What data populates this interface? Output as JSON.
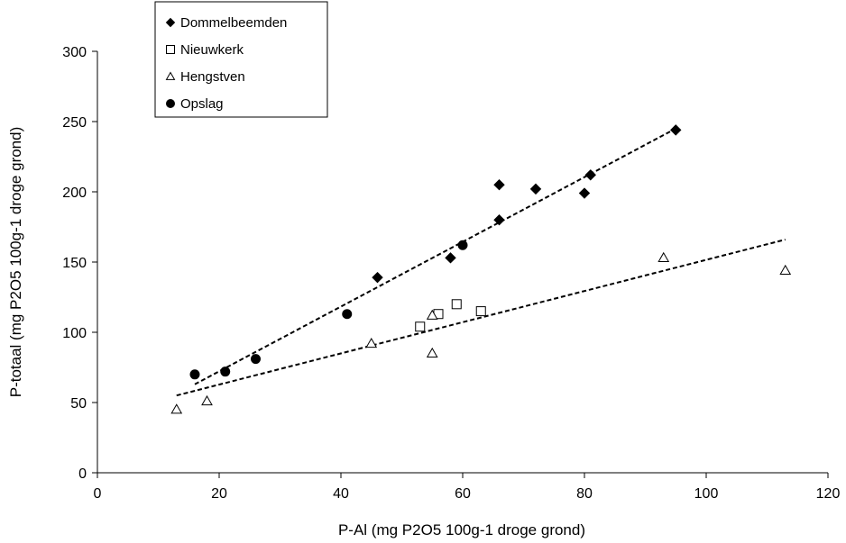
{
  "chart_data": {
    "type": "scatter",
    "title": "",
    "xlabel": "P-Al (mg P2O5 100g-1 droge grond)",
    "ylabel": "P-totaal (mg P2O5 100g-1 droge grond)",
    "xlim": [
      0,
      120
    ],
    "ylim": [
      0,
      300
    ],
    "xticks": [
      0,
      20,
      40,
      60,
      80,
      100,
      120
    ],
    "yticks": [
      0,
      50,
      100,
      150,
      200,
      250,
      300
    ],
    "xtick_labels": [
      "0",
      "20",
      "40",
      "60",
      "80",
      "100",
      "120"
    ],
    "ytick_labels": [
      "0",
      "50",
      "100",
      "150",
      "200",
      "250",
      "300"
    ],
    "grid": false,
    "legend_position": "top-left",
    "series": [
      {
        "name": "Dommelbeemden",
        "marker": "diamond-filled",
        "color": "#000000",
        "points": [
          {
            "x": 46,
            "y": 139
          },
          {
            "x": 58,
            "y": 153
          },
          {
            "x": 66,
            "y": 180
          },
          {
            "x": 66,
            "y": 205
          },
          {
            "x": 72,
            "y": 202
          },
          {
            "x": 80,
            "y": 199
          },
          {
            "x": 81,
            "y": 212
          },
          {
            "x": 95,
            "y": 244
          }
        ]
      },
      {
        "name": "Nieuwkerk",
        "marker": "square-open",
        "color": "#000000",
        "points": [
          {
            "x": 53,
            "y": 104
          },
          {
            "x": 56,
            "y": 113
          },
          {
            "x": 59,
            "y": 120
          },
          {
            "x": 63,
            "y": 115
          }
        ]
      },
      {
        "name": "Hengstven",
        "marker": "triangle-open",
        "color": "#000000",
        "points": [
          {
            "x": 13,
            "y": 45
          },
          {
            "x": 18,
            "y": 51
          },
          {
            "x": 45,
            "y": 92
          },
          {
            "x": 55,
            "y": 85
          },
          {
            "x": 55,
            "y": 112
          },
          {
            "x": 93,
            "y": 153
          },
          {
            "x": 113,
            "y": 144
          }
        ]
      },
      {
        "name": "Opslag",
        "marker": "circle-filled",
        "color": "#000000",
        "points": [
          {
            "x": 16,
            "y": 70
          },
          {
            "x": 21,
            "y": 72
          },
          {
            "x": 26,
            "y": 81
          },
          {
            "x": 41,
            "y": 113
          },
          {
            "x": 60,
            "y": 162
          }
        ]
      }
    ],
    "trendlines": [
      {
        "style": "dashed",
        "color": "#000000",
        "from": {
          "x": 16,
          "y": 63
        },
        "to": {
          "x": 95,
          "y": 245
        }
      },
      {
        "style": "dashed",
        "color": "#000000",
        "from": {
          "x": 13,
          "y": 55
        },
        "to": {
          "x": 113,
          "y": 166
        }
      }
    ]
  }
}
